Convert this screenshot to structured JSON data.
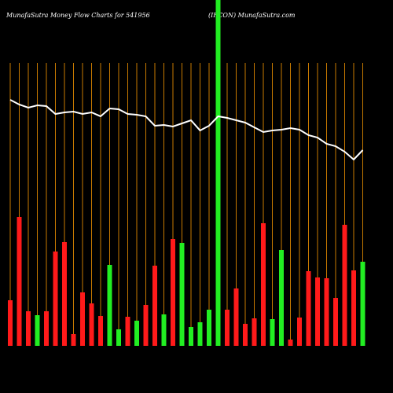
{
  "chart_data": {
    "type": "money-flow",
    "title": "MunafaSutra  Money Flow  Charts for 541956",
    "subtitle": "(IRCON) MunafaSutra.com",
    "ylim": [
      0,
      360
    ],
    "bars": {
      "values": [
        58,
        164,
        44,
        39,
        44,
        120,
        132,
        15,
        68,
        54,
        38,
        103,
        21,
        37,
        32,
        52,
        102,
        40,
        136,
        131,
        24,
        30,
        46,
        440,
        46,
        73,
        28,
        35,
        156,
        34,
        122,
        8,
        36,
        95,
        87,
        86,
        61,
        154,
        96,
        107
      ],
      "colors": [
        "#ff1a1a",
        "#ff1a1a",
        "#ff1a1a",
        "#22ee22",
        "#ff1a1a",
        "#ff1a1a",
        "#ff1a1a",
        "#ff1a1a",
        "#ff1a1a",
        "#ff1a1a",
        "#ff1a1a",
        "#22ee22",
        "#22ee22",
        "#ff1a1a",
        "#22ee22",
        "#ff1a1a",
        "#ff1a1a",
        "#22ee22",
        "#ff1a1a",
        "#22ee22",
        "#22ee22",
        "#22ee22",
        "#22ee22",
        "#22ee22",
        "#ff1a1a",
        "#ff1a1a",
        "#ff1a1a",
        "#ff1a1a",
        "#ff1a1a",
        "#22ee22",
        "#22ee22",
        "#ff1a1a",
        "#ff1a1a",
        "#ff1a1a",
        "#ff1a1a",
        "#ff1a1a",
        "#ff1a1a",
        "#ff1a1a",
        "#ff1a1a",
        "#22ee22"
      ]
    },
    "line": {
      "color": "#ffffff",
      "values": [
        313,
        307,
        303,
        306,
        305,
        295,
        297,
        298,
        295,
        297,
        292,
        302,
        301,
        295,
        294,
        292,
        280,
        281,
        279,
        283,
        287,
        274,
        280,
        292,
        290,
        287,
        284,
        278,
        272,
        274,
        275,
        277,
        275,
        268,
        265,
        257,
        254,
        247,
        237,
        249
      ]
    },
    "gridline_color": "#c87a00"
  }
}
